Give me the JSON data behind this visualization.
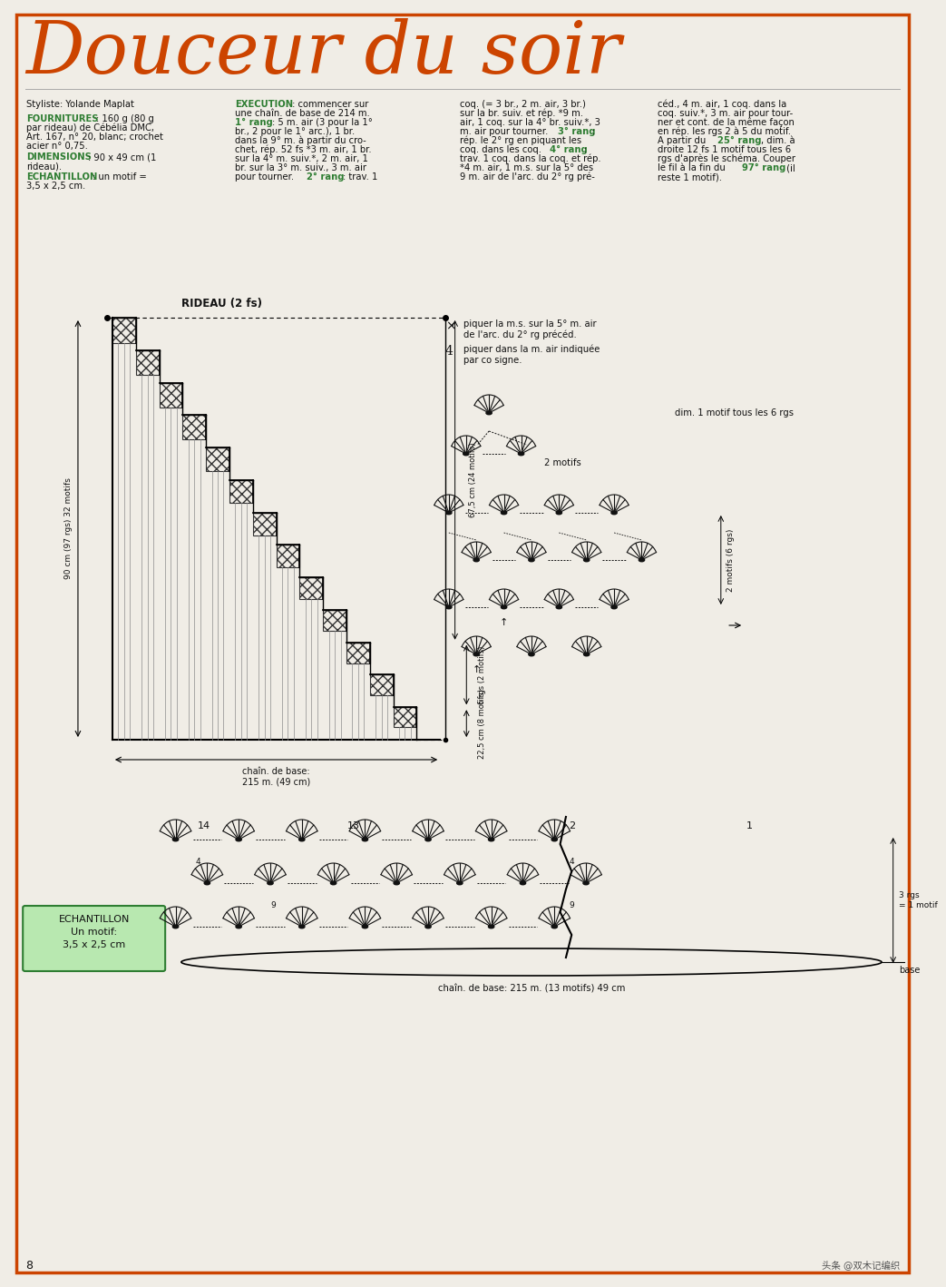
{
  "title": "Douceur du soir",
  "title_color": "#CC4400",
  "title_fontsize": 58,
  "page_bg": "#F0EDE6",
  "border_color": "#CC4400",
  "page_number": "8",
  "watermark": "头条 @双木记编织",
  "rideau_label": "RIDEAU (2 fs)",
  "dim_left": "90 cm (97 rgs) 32 motifs",
  "dim_right_top": "67,5 cm (24 motifs)",
  "dim_right_mid": "6 rgs (2 motifs)",
  "dim_right_bot": "22,5 cm (8 motifs)",
  "dim_bottom": "chaîn. de base:\n215 m. (49 cm)",
  "legend1_text": "piquer la m.s. sur la 5° m. air\nde l'arc. du 2° rg précéd.",
  "legend2_text": "piquer dans la m. air indiquée\npar co signe.",
  "stitch_label1": "2 motifs",
  "stitch_label2": "2 motifs (6 rgs)",
  "stitch_label3": "dim. 1 motif tous les 6 rgs",
  "bottom_chain": "chaîn. de base: 215 m. (13 motifs) 49 cm",
  "bottom_label1": "3 rgs\n= 1 motif",
  "bottom_label2": "base",
  "echantillon_text": "ECHANTILLON\nUn motif:\n3,5 x 2,5 cm"
}
